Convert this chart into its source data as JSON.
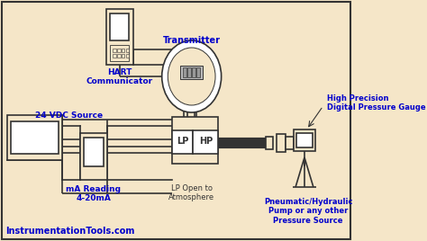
{
  "bg_color": "#f5e6c8",
  "line_color": "#333333",
  "blue_color": "#0000cc",
  "labels": {
    "hart": "HART\nCommunicator",
    "transmitter": "Transmitter",
    "vdc": "24 VDC Source",
    "ma": "mA Reading\n4-20mA",
    "lp_open": "LP Open to\nAtmosphere",
    "hp_gauge": "High Precision\nDigital Pressure Gauge",
    "pump": "Pneumatic/Hydraulic\nPump or any other\nPressure Source",
    "lp": "LP",
    "hp": "HP",
    "footer": "InstrumentationTools.com"
  }
}
